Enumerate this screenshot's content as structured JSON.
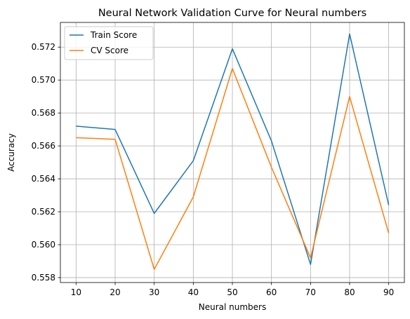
{
  "chart_data": {
    "type": "line",
    "title": "Neural Network Validation Curve for Neural numbers",
    "xlabel": "Neural numbers",
    "ylabel": "Accuracy",
    "x": [
      10,
      20,
      30,
      40,
      50,
      60,
      70,
      80,
      90
    ],
    "xticks": [
      "10",
      "20",
      "30",
      "40",
      "50",
      "60",
      "70",
      "80",
      "90"
    ],
    "yticks": [
      "0.558",
      "0.560",
      "0.562",
      "0.564",
      "0.566",
      "0.568",
      "0.570",
      "0.572"
    ],
    "xlim": [
      5.985,
      94.015
    ],
    "ylim": [
      0.5577,
      0.5735
    ],
    "grid": true,
    "legend_position": "top-left",
    "series": [
      {
        "name": "Train Score",
        "color": "#1f77b4",
        "values": [
          0.5672,
          0.567,
          0.5619,
          0.5651,
          0.5719,
          0.5663,
          0.5588,
          0.5728,
          0.5624
        ]
      },
      {
        "name": "CV Score",
        "color": "#ff7f0e",
        "values": [
          0.5665,
          0.5664,
          0.5585,
          0.5629,
          0.5707,
          0.5647,
          0.5592,
          0.569,
          0.5607
        ]
      }
    ]
  }
}
